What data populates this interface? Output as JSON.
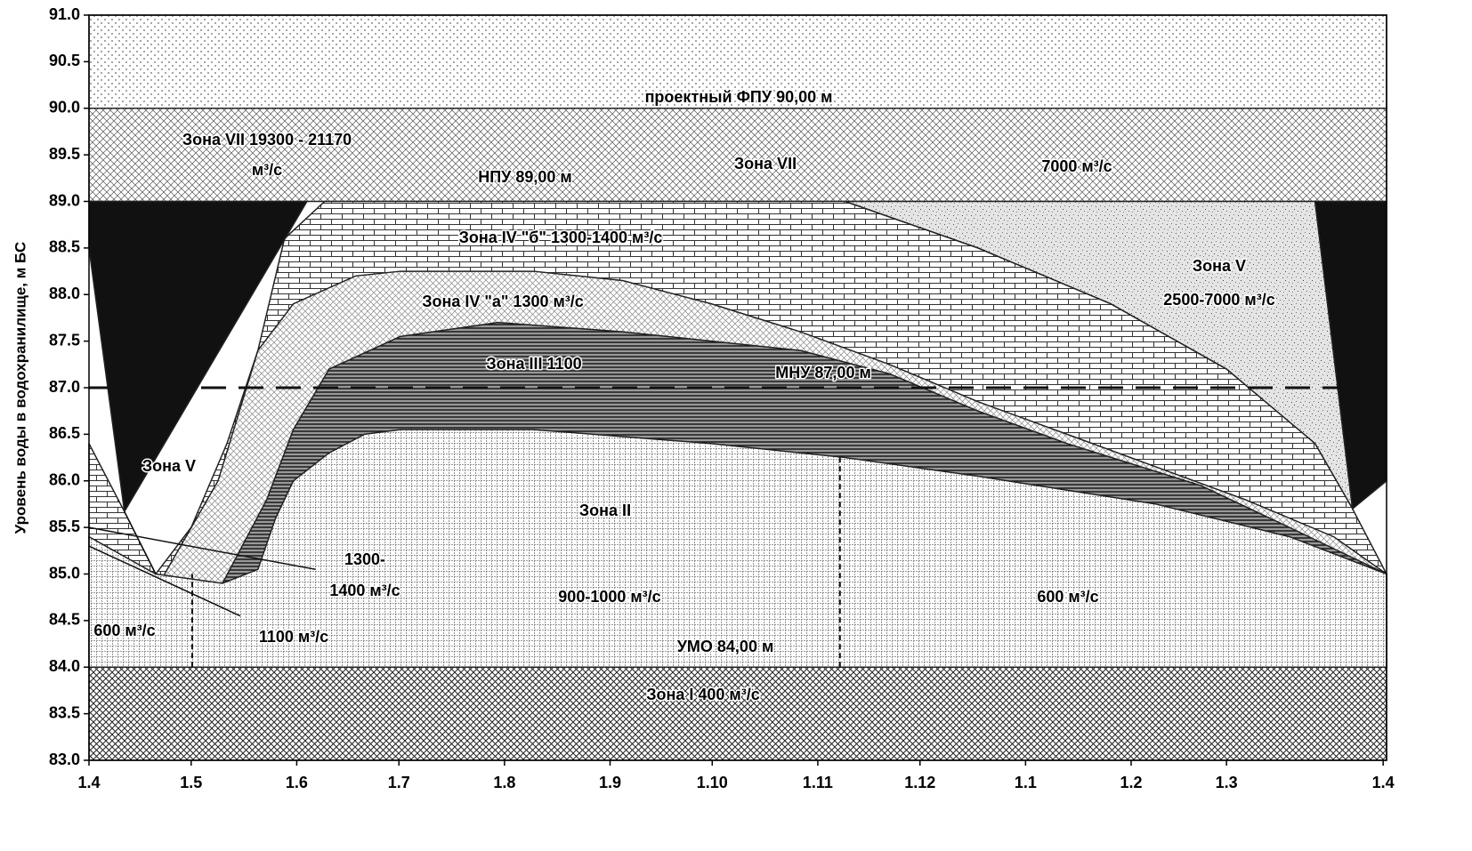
{
  "chart_data": {
    "type": "zones",
    "y_label": "Уровень воды в водохранилище, м БС",
    "xlim": [
      0,
      381
    ],
    "ylim": [
      83,
      91
    ],
    "xticks": [
      {
        "value": 0,
        "label": "1.4"
      },
      {
        "value": 30,
        "label": "1.5"
      },
      {
        "value": 61,
        "label": "1.6"
      },
      {
        "value": 91,
        "label": "1.7"
      },
      {
        "value": 122,
        "label": "1.8"
      },
      {
        "value": 153,
        "label": "1.9"
      },
      {
        "value": 183,
        "label": "1.10"
      },
      {
        "value": 214,
        "label": "1.11"
      },
      {
        "value": 244,
        "label": "1.12"
      },
      {
        "value": 275,
        "label": "1.1"
      },
      {
        "value": 306,
        "label": "1.2"
      },
      {
        "value": 334,
        "label": "1.3"
      },
      {
        "value": 380,
        "label": "1.4"
      }
    ],
    "yticks": [
      {
        "value": 83,
        "label": "83.0"
      },
      {
        "value": 83.5,
        "label": "83.5"
      },
      {
        "value": 84,
        "label": "84.0"
      },
      {
        "value": 84.5,
        "label": "84.5"
      },
      {
        "value": 85,
        "label": "85.0"
      },
      {
        "value": 85.5,
        "label": "85.5"
      },
      {
        "value": 86,
        "label": "86.0"
      },
      {
        "value": 86.5,
        "label": "86.5"
      },
      {
        "value": 87,
        "label": "87.0"
      },
      {
        "value": 87.5,
        "label": "87.5"
      },
      {
        "value": 88,
        "label": "88.0"
      },
      {
        "value": 88.5,
        "label": "88.5"
      },
      {
        "value": 89,
        "label": "89.0"
      },
      {
        "value": 89.5,
        "label": "89.5"
      },
      {
        "value": 90,
        "label": "90.0"
      },
      {
        "value": 90.5,
        "label": "90.5"
      },
      {
        "value": 91,
        "label": "91.0"
      }
    ],
    "areas": [
      {
        "fill": "dots",
        "x": [
          0,
          381,
          381,
          0
        ],
        "y": [
          90,
          90,
          91,
          91
        ]
      },
      {
        "fill": "diag",
        "x": [
          0,
          381,
          381,
          0
        ],
        "y": [
          89,
          89,
          90,
          90
        ]
      },
      {
        "fill": "cross",
        "x": [
          0,
          381,
          381,
          0
        ],
        "y": [
          83,
          83,
          84,
          84
        ]
      },
      {
        "fill": "stipple",
        "x": [
          222,
          360,
          371,
          360,
          334,
          300,
          261
        ],
        "y": [
          89,
          89,
          85.7,
          86.4,
          87.2,
          87.9,
          88.5
        ]
      },
      {
        "fill": "brick",
        "x": [
          0,
          10.4,
          19.6,
          30,
          40.5,
          49.6,
          57.4,
          69.2,
          222,
          261,
          300,
          334,
          360,
          371,
          381,
          381,
          0
        ],
        "y": [
          86.4,
          85.67,
          85.0,
          85.5,
          86.4,
          87.4,
          88.6,
          89,
          89,
          88.5,
          87.9,
          87.2,
          86.4,
          85.7,
          85.0,
          84,
          84
        ]
      },
      {
        "fill": "black",
        "x": [
          0,
          64,
          10.4,
          0
        ],
        "y": [
          89,
          89,
          85.67,
          88.5
        ]
      },
      {
        "fill": "black",
        "x": [
          360,
          381,
          381,
          371
        ],
        "y": [
          89,
          89,
          86.0,
          85.7
        ]
      },
      {
        "fill": "lightcross",
        "x": [
          22.2,
          37.9,
          49.6,
          60,
          78.3,
          91.4,
          130.5,
          156.7,
          182.8,
          208.9,
          235,
          261,
          287.2,
          313.3,
          339.4,
          365.5,
          381,
          381,
          22.2
        ],
        "y": [
          85.0,
          86.0,
          87.4,
          87.9,
          88.2,
          88.25,
          88.25,
          88.15,
          87.9,
          87.6,
          87.25,
          86.85,
          86.5,
          86.15,
          85.8,
          85.4,
          85.0,
          84,
          84
        ]
      },
      {
        "fill": "hlines",
        "x": [
          39.2,
          52.2,
          60,
          70.5,
          91.4,
          120.1,
          156.7,
          182.8,
          208.9,
          235,
          261,
          287.2,
          326.4,
          352.5,
          381,
          381,
          39.2
        ],
        "y": [
          84.9,
          85.8,
          86.55,
          87.2,
          87.55,
          87.7,
          87.6,
          87.5,
          87.4,
          87.15,
          86.75,
          86.4,
          85.95,
          85.5,
          85.0,
          84,
          84
        ]
      },
      {
        "fill": "grid",
        "x": [
          0,
          19.6,
          39.2,
          49.6,
          54.8,
          60,
          70.5,
          80.9,
          91.4,
          130.5,
          182.8,
          222,
          261,
          313.3,
          352.5,
          381,
          381,
          0
        ],
        "y": [
          85.4,
          85.0,
          84.9,
          85.05,
          85.6,
          86.0,
          86.3,
          86.5,
          86.55,
          86.55,
          86.4,
          86.25,
          86.05,
          85.75,
          85.4,
          85.0,
          84,
          84
        ]
      }
    ],
    "hlines": [
      {
        "y": 87,
        "dashed": true
      }
    ],
    "vlines": [
      {
        "x": 30.3,
        "y": [
          84,
          85
        ],
        "dashed": true
      },
      {
        "x": 220.5,
        "y": [
          84,
          86.25
        ],
        "dashed": true
      }
    ],
    "segments": [
      {
        "x": [
          0,
          66.5
        ],
        "y": [
          85.5,
          85.05
        ]
      },
      {
        "x": [
          0,
          44.4
        ],
        "y": [
          85.3,
          84.55
        ]
      },
      {
        "x": [
          10.4,
          19.6
        ],
        "y": [
          85.67,
          85.0
        ]
      }
    ],
    "annotations": [
      "проектный ФПУ 90,00 м",
      "Зона VII 19300 - 21170",
      "м³/с",
      "НПУ 89,00 м",
      "Зона VII",
      "7000 м³/с",
      "Зона IV \"б\"   1300-1400 м³/с",
      "Зона V",
      "2500-7000 м³/с",
      "Зона IV \"а\"  1300 м³/с",
      "Зона III 1100",
      "МНУ 87,00 м",
      "Зона V",
      "Зона II",
      "1300-",
      "1400 м³/с",
      "900-1000 м³/с",
      "600 м³/с",
      "600 м³/с",
      "1100 м³/с",
      "УМО 84,00 м",
      "Зона I    400 м³/с"
    ]
  }
}
